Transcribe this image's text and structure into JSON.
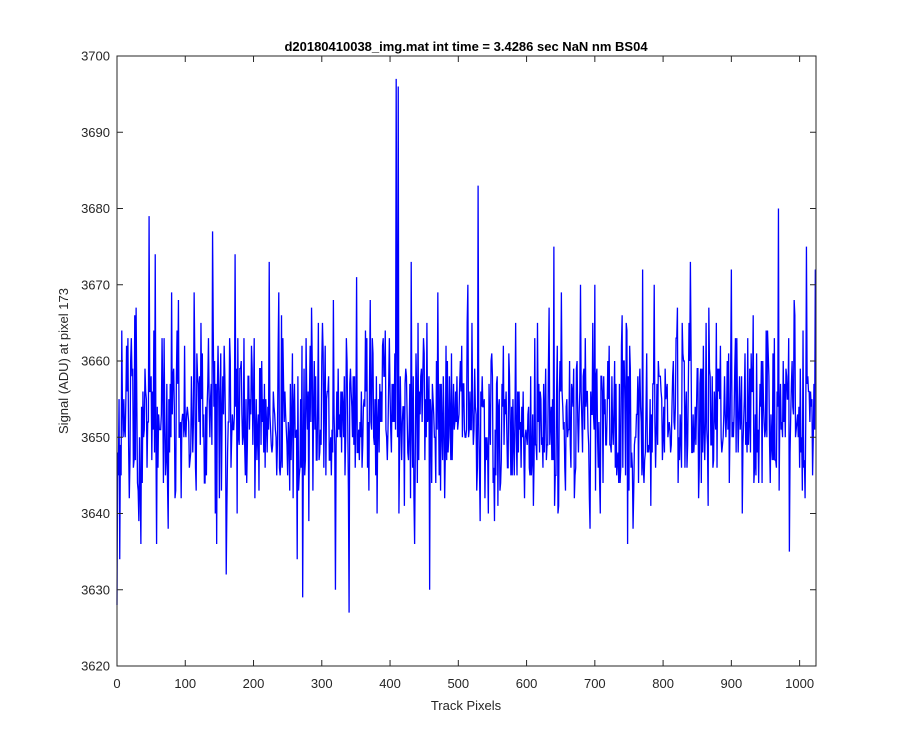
{
  "chart_data": {
    "type": "line",
    "title": "d20180410038_img.mat int time = 3.4286 sec  NaN nm BS04",
    "xlabel": "Track Pixels",
    "ylabel": "Signal (ADU) at pixel 173",
    "xlim": [
      0,
      1024
    ],
    "ylim": [
      3620,
      3700
    ],
    "xticks": [
      0,
      100,
      200,
      300,
      400,
      500,
      600,
      700,
      800,
      900,
      1000
    ],
    "yticks": [
      3620,
      3630,
      3640,
      3650,
      3660,
      3670,
      3680,
      3690,
      3700
    ],
    "grid": false,
    "line_color": "#0000ff",
    "n_points": 1024,
    "baseline_mean": 3653,
    "noise_range": [
      3635,
      3672
    ],
    "x": [
      0,
      4,
      21,
      28,
      35,
      45,
      47,
      56,
      75,
      90,
      140,
      146,
      150,
      160,
      163,
      173,
      192,
      223,
      264,
      272,
      295,
      320,
      340,
      409,
      411,
      412,
      431,
      458,
      527,
      529,
      640,
      700,
      770,
      840,
      900,
      938,
      969,
      985,
      1010,
      1023
    ],
    "y": [
      3628,
      3634,
      3663,
      3667,
      3636,
      3652,
      3679,
      3674,
      3638,
      3668,
      3677,
      3636,
      3642,
      3632,
      3652,
      3674,
      3658,
      3673,
      3634,
      3629,
      3665,
      3630,
      3627,
      3697,
      3650,
      3696,
      3673,
      3630,
      3643,
      3683,
      3675,
      3670,
      3672,
      3673,
      3672,
      3648,
      3680,
      3635,
      3675,
      3672
    ]
  }
}
